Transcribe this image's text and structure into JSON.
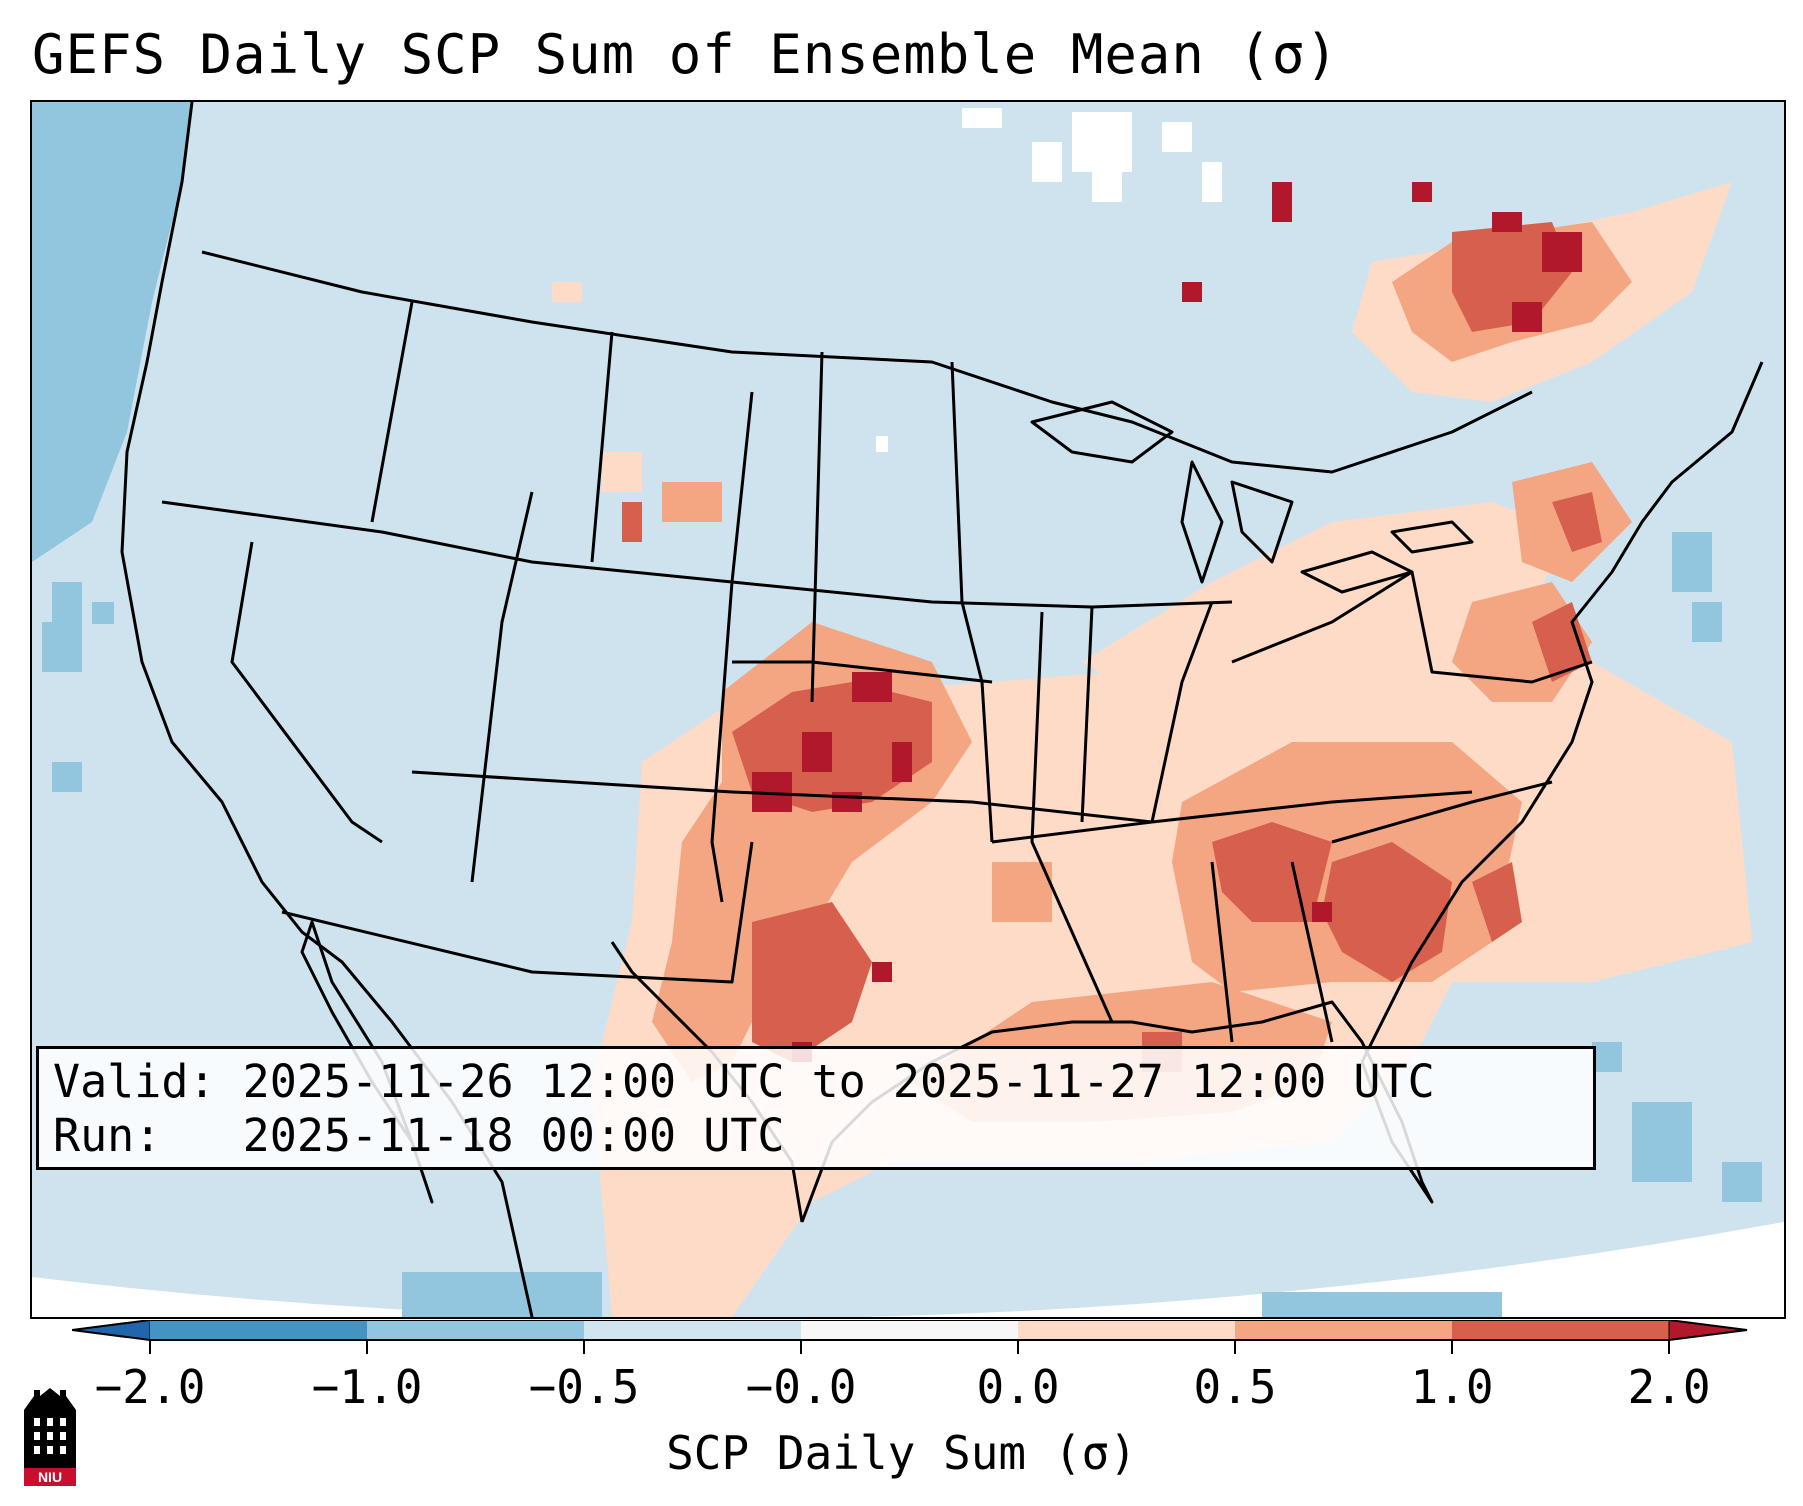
{
  "title": "GEFS Daily SCP Sum of Ensemble Mean (σ)",
  "info": {
    "valid_line": "Valid: 2025-11-26 12:00 UTC to 2025-11-27 12:00 UTC",
    "run_line": "Run:   2025-11-18 00:00 UTC"
  },
  "colorbar": {
    "label": "SCP Daily Sum (σ)",
    "ticks": [
      "−2.0",
      "−1.0",
      "−0.5",
      "−0.0",
      "0.0",
      "0.5",
      "1.0",
      "2.0"
    ],
    "colors": {
      "below": "#2166ac",
      "b1": "#4393c3",
      "b2": "#92c5de",
      "b3": "#d1e5f0",
      "gap": "#f7f7f7",
      "b5": "#fddbc7",
      "b6": "#f4a582",
      "b7": "#d6604d",
      "above": "#b2182b"
    }
  },
  "logo": {
    "text": "NIU"
  }
}
